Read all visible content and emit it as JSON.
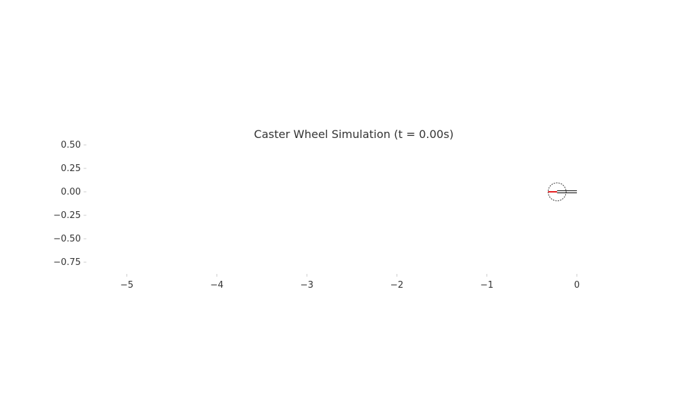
{
  "chart_data": {
    "type": "line",
    "title": "Caster Wheel Simulation (t = 0.00s)",
    "xlabel": "",
    "ylabel": "",
    "xlim": [
      -5.45,
      0.5
    ],
    "ylim": [
      -0.875,
      0.5
    ],
    "x_ticks": [
      -5,
      -4,
      -3,
      -2,
      -1,
      0
    ],
    "x_tick_labels": [
      "−5",
      "−4",
      "−3",
      "−2",
      "−1",
      "0"
    ],
    "y_ticks": [
      0.5,
      0.25,
      0.0,
      -0.25,
      -0.5,
      -0.75
    ],
    "y_tick_labels": [
      "0.50",
      "0.25",
      "0.00",
      "−0.25",
      "−0.50",
      "−0.75"
    ],
    "grid": false,
    "wheel": {
      "center": [
        -0.22,
        0.0
      ],
      "radius": 0.1,
      "heading_line": {
        "x": [
          -0.32,
          -0.22
        ],
        "y": [
          0.0,
          0.0
        ],
        "color": "#e41a1c"
      },
      "caster_arm": {
        "x": [
          -0.22,
          0.0
        ],
        "y": [
          0.0,
          0.0
        ],
        "color": "#000000"
      }
    },
    "colors": {
      "axis": "#cccccc",
      "text": "#333333",
      "heading": "#e41a1c",
      "wheel": "#333333"
    }
  }
}
